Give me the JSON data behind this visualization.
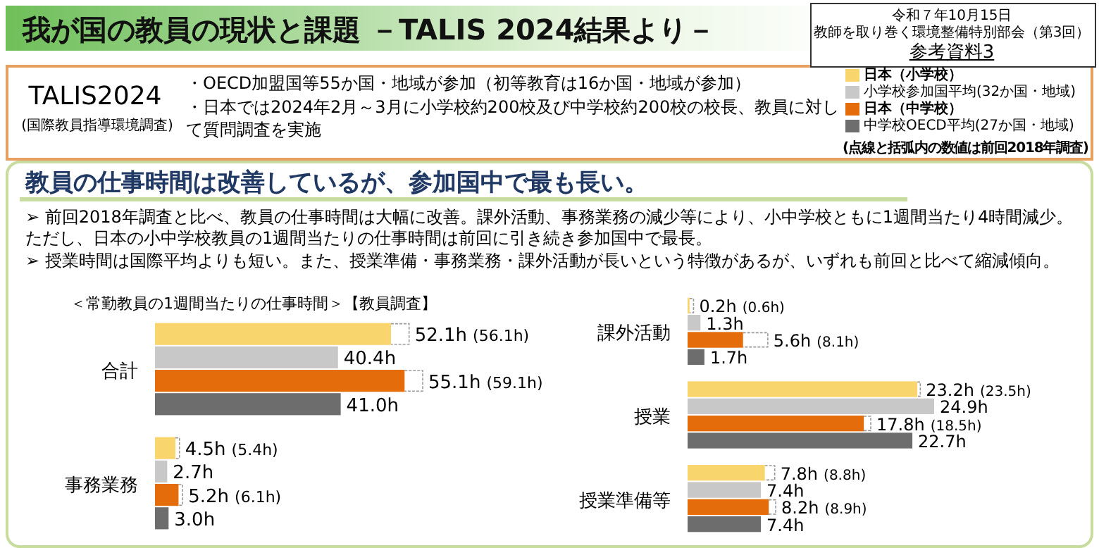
{
  "chart_data": [
    {
      "type": "bar",
      "orientation": "horizontal",
      "title": "我が国の教員の現状と課題 －TALIS 2024結果より－",
      "subtitle": "＜常勤教員の1週間当たりの仕事時間＞【教員調査】",
      "legend": "top right",
      "annotations": [
        "令和７年10月15日",
        "教師を取り巻く環境整備特別部会（第3回）",
        "参考資料3",
        "TALIS2024",
        "(国際教員指導環境調査)",
        "・OECD加盟国等55か国・地域が参加（初等教育は16か国・地域が参加）",
        "・日本では2024年2月～3月に小学校約200校及び中学校約200校の校長、教員に対して質問調査を実施",
        "教員の仕事時間は改善しているが、参加国中で最も長い。",
        "➢ 前回2018年調査と比べ、教員の仕事時間は大幅に改善。課外活動、事務業務の減少等により、小中学校ともに1週間当たり4時間減少。ただし、日本の小中学校教員の1週間当たりの仕事時間は前回に引き続き参加国中で最長。",
        "➢ 授業時間は国際平均よりも短い。また、授業準備・事務業務・課外活動が長いという特徴があるが、いずれも前回と比べて縮減傾向。",
        "(点線と括弧内の数値は前回2018年調査)"
      ],
      "categories": [
        "合計",
        "事務業務"
      ],
      "series": [
        {
          "name": "日本（小学校）",
          "color": "#f9d56e",
          "values": [
            52.1,
            4.5
          ],
          "value_labels": [
            "52.1h (56.1h)",
            "4.5h (5.4h)"
          ]
        },
        {
          "name": "小学校参加国平均(32か国・地域)",
          "color": "#c8c8c8",
          "values": [
            40.4,
            2.7
          ],
          "value_labels": [
            "40.4h",
            "2.7h"
          ]
        },
        {
          "name": "日本（中学校）",
          "color": "#e46c0a",
          "values": [
            55.1,
            5.2
          ],
          "value_labels": [
            "55.1h (59.1h)",
            "5.2h (6.1h)"
          ]
        },
        {
          "name": "中学校OECD平均(27か国・地域)",
          "color": "#6d6d6d",
          "values": [
            41.0,
            3.0
          ],
          "value_labels": [
            "41.0h",
            "3.0h"
          ]
        }
      ]
    },
    {
      "type": "bar",
      "orientation": "horizontal",
      "categories": [
        "課外活動",
        "授業",
        "授業準備等"
      ],
      "series": [
        {
          "name": "日本（小学校）",
          "color": "#f9d56e",
          "values": [
            0.2,
            23.2,
            7.8
          ],
          "value_labels": [
            "0.2h (0.6h)",
            "23.2h (23.5h)",
            "7.8h (8.8h)"
          ]
        },
        {
          "name": "小学校参加国平均(32か国・地域)",
          "color": "#c8c8c8",
          "values": [
            1.3,
            24.9,
            7.4
          ],
          "value_labels": [
            "1.3h",
            "24.9h",
            "7.4h"
          ]
        },
        {
          "name": "日本（中学校）",
          "color": "#e46c0a",
          "values": [
            5.6,
            17.8,
            8.2
          ],
          "value_labels": [
            "5.6h (8.1h)",
            "17.8h (18.5h)",
            "8.2h (8.9h)"
          ]
        },
        {
          "name": "中学校OECD平均(27か国・地域)",
          "color": "#6d6d6d",
          "values": [
            1.7,
            22.7,
            7.4
          ],
          "value_labels": [
            "1.7h",
            "22.7h",
            "7.4h"
          ]
        }
      ]
    }
  ]
}
